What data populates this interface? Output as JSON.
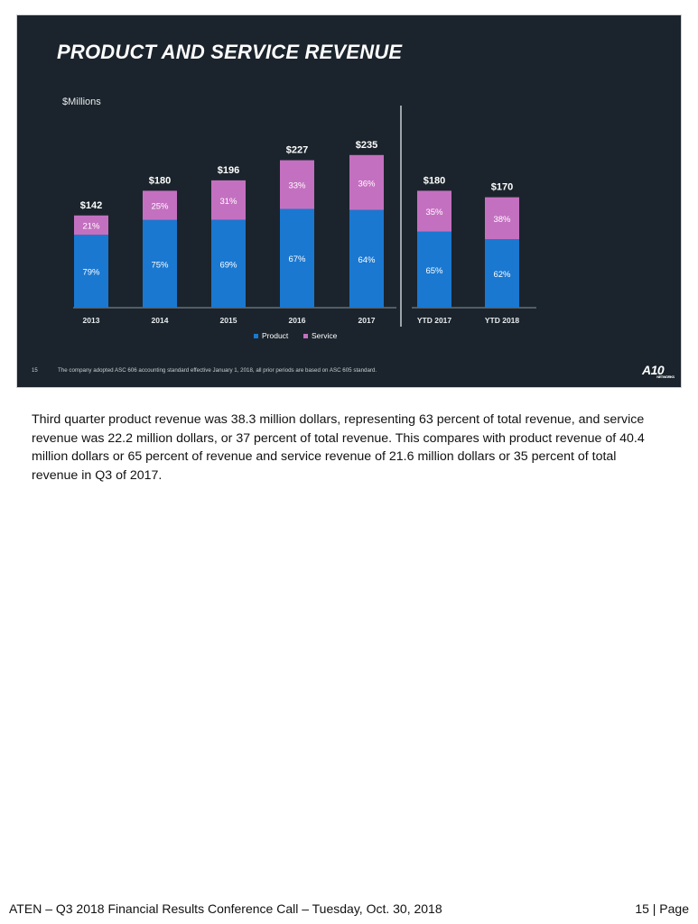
{
  "slide": {
    "title": "PRODUCT AND SERVICE REVENUE",
    "units": "$Millions",
    "footnote_number": "15",
    "footnote": "The company adopted ASC 606 accounting standard effective January 1, 2018, all prior periods are based on ASC 605 standard.",
    "logo": "A10",
    "logo_sub": "NETWORKS"
  },
  "chart_data": {
    "type": "bar",
    "stacked": true,
    "title": "PRODUCT AND SERVICE REVENUE",
    "ylabel": "$Millions",
    "categories": [
      "2013",
      "2014",
      "2015",
      "2016",
      "2017",
      "YTD 2017",
      "YTD 2018"
    ],
    "totals": [
      "$142",
      "$180",
      "$196",
      "$227",
      "$235",
      "$180",
      "$170"
    ],
    "total_values": [
      142,
      180,
      196,
      227,
      235,
      180,
      170
    ],
    "series": [
      {
        "name": "Product",
        "color": "#1a78d0",
        "percent_labels": [
          "79%",
          "75%",
          "69%",
          "67%",
          "64%",
          "65%",
          "62%"
        ],
        "percents": [
          79,
          75,
          69,
          67,
          64,
          65,
          62
        ]
      },
      {
        "name": "Service",
        "color": "#c470c0",
        "percent_labels": [
          "21%",
          "25%",
          "31%",
          "33%",
          "36%",
          "35%",
          "38%"
        ],
        "percents": [
          21,
          25,
          31,
          33,
          36,
          35,
          38
        ]
      }
    ],
    "ylim": [
      0,
      250
    ],
    "separator_after_index": 4,
    "legend": "bottom"
  },
  "body": {
    "paragraph": "Third quarter product revenue was 38.3 million dollars, representing 63 percent of total revenue, and service revenue was 22.2 million dollars, or 37 percent of total revenue.  This compares with product revenue of 40.4 million dollars or 65 percent of revenue and service revenue of 21.6 million dollars or 35 percent of total revenue in Q3 of 2017."
  },
  "footer": {
    "left": "ATEN – Q3 2018 Financial Results Conference Call – Tuesday, Oct. 30, 2018",
    "right": "15 | Page"
  }
}
